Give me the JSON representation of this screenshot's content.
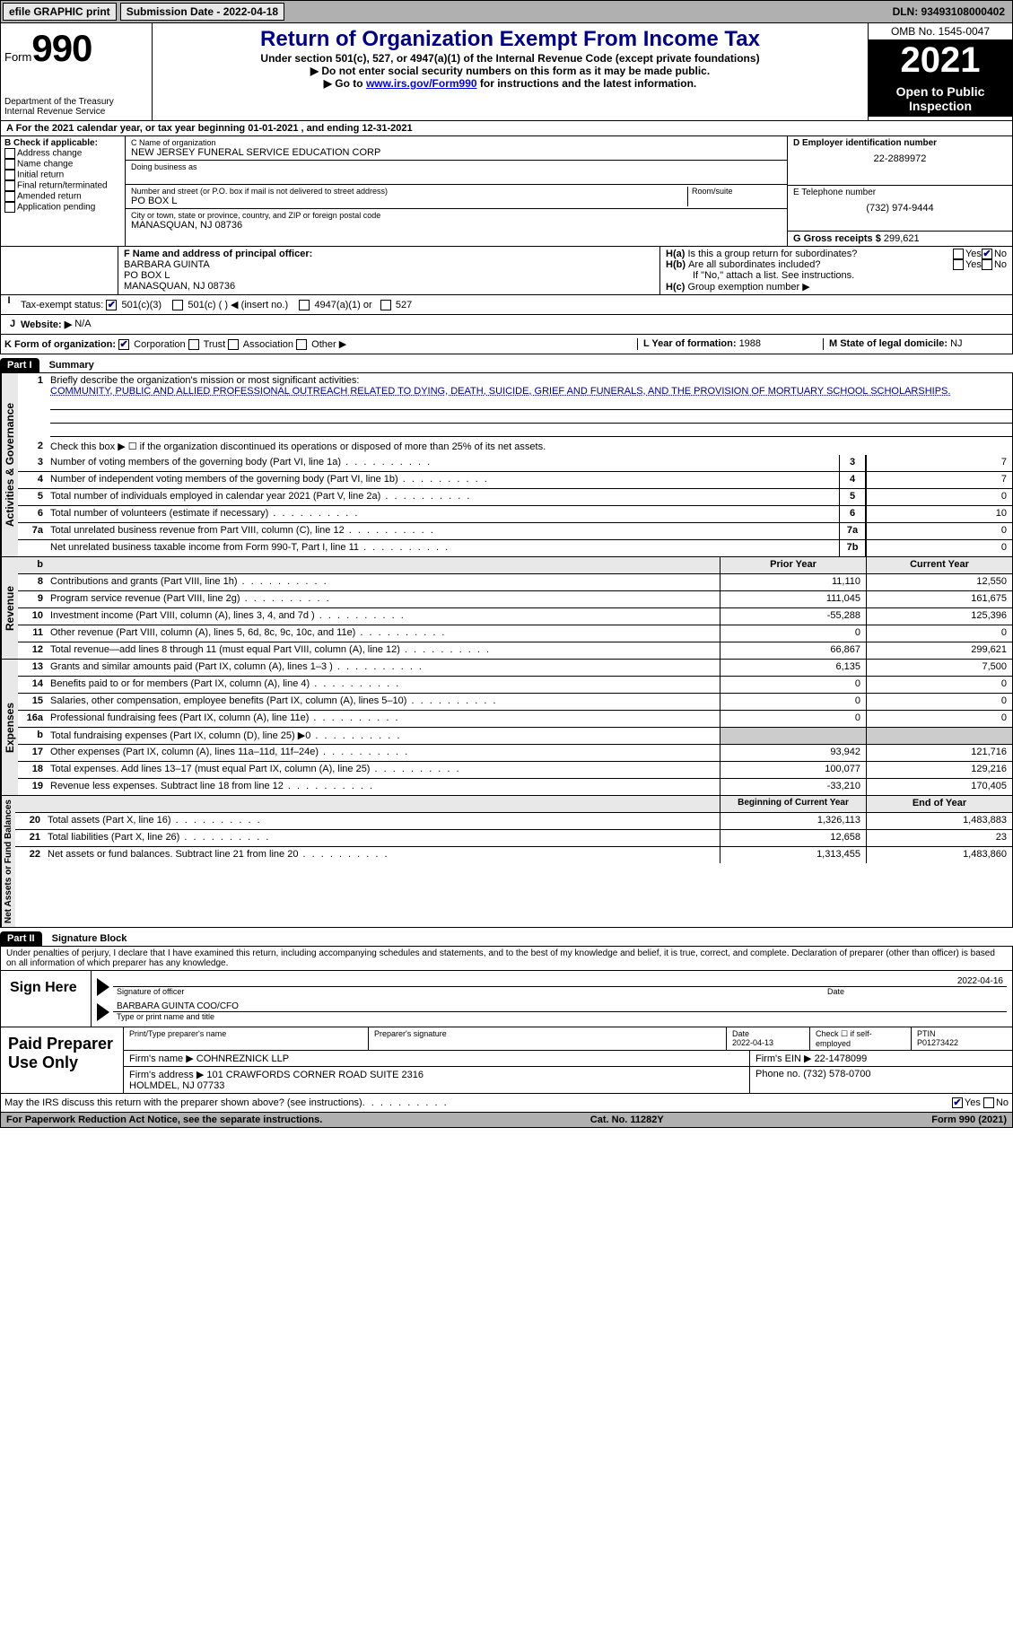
{
  "topbar": {
    "efile": "efile GRAPHIC print",
    "submission_label": "Submission Date - 2022-04-18",
    "dln_label": "DLN: 93493108000402"
  },
  "header": {
    "form_word": "Form",
    "form_num": "990",
    "dept1": "Department of the Treasury",
    "dept2": "Internal Revenue Service",
    "title": "Return of Organization Exempt From Income Tax",
    "sub1": "Under section 501(c), 527, or 4947(a)(1) of the Internal Revenue Code (except private foundations)",
    "sub2": "▶ Do not enter social security numbers on this form as it may be made public.",
    "sub3_pre": "▶ Go to ",
    "sub3_link": "www.irs.gov/Form990",
    "sub3_post": " for instructions and the latest information.",
    "omb": "OMB No. 1545-0047",
    "year": "2021",
    "open": "Open to Public Inspection"
  },
  "rowA": {
    "text_pre": "A For the 2021 calendar year, or tax year beginning ",
    "begin": "01-01-2021",
    "mid": " , and ending ",
    "end": "12-31-2021"
  },
  "colB": {
    "header": "B Check if applicable:",
    "opts": [
      "Address change",
      "Name change",
      "Initial return",
      "Final return/terminated",
      "Amended return",
      "Application pending"
    ]
  },
  "colC": {
    "name_label": "C Name of organization",
    "name": "NEW JERSEY FUNERAL SERVICE EDUCATION CORP",
    "dba_label": "Doing business as",
    "addr_label": "Number and street (or P.O. box if mail is not delivered to street address)",
    "room_label": "Room/suite",
    "addr": "PO BOX L",
    "city_label": "City or town, state or province, country, and ZIP or foreign postal code",
    "city": "MANASQUAN, NJ  08736"
  },
  "colD": {
    "ein_label": "D Employer identification number",
    "ein": "22-2889972",
    "phone_label": "E Telephone number",
    "phone": "(732) 974-9444",
    "gross_label": "G Gross receipts $ ",
    "gross": "299,621"
  },
  "rowF": {
    "label": "F Name and address of principal officer:",
    "name": "BARBARA GUINTA",
    "addr": "PO BOX L",
    "city": "MANASQUAN, NJ  08736"
  },
  "rowH": {
    "ha": "Is this a group return for subordinates?",
    "hb": "Are all subordinates included?",
    "hb_note": "If \"No,\" attach a list. See instructions.",
    "hc": "Group exemption number ▶"
  },
  "rowI": {
    "label": "Tax-exempt status:",
    "opt1": "501(c)(3)",
    "opt2": "501(c) (  ) ◀ (insert no.)",
    "opt3": "4947(a)(1) or",
    "opt4": "527"
  },
  "rowJ": {
    "label": "Website: ▶",
    "val": "N/A"
  },
  "rowK": {
    "label": "K Form of organization:",
    "opts": [
      "Corporation",
      "Trust",
      "Association",
      "Other ▶"
    ],
    "L_label": "L Year of formation: ",
    "L_val": "1988",
    "M_label": "M State of legal domicile: ",
    "M_val": "NJ"
  },
  "part1": {
    "header": "Part I",
    "title": "Summary",
    "mission_label": "Briefly describe the organization's mission or most significant activities:",
    "mission": "COMMUNITY, PUBLIC AND ALLIED PROFESSIONAL OUTREACH RELATED TO DYING, DEATH, SUICIDE, GRIEF AND FUNERALS, AND THE PROVISION OF MORTUARY SCHOOL SCHOLARSHIPS.",
    "line2": "Check this box ▶ ☐ if the organization discontinued its operations or disposed of more than 25% of its net assets.",
    "gov_rows": [
      {
        "n": "3",
        "t": "Number of voting members of the governing body (Part VI, line 1a)",
        "box": "3",
        "v": "7"
      },
      {
        "n": "4",
        "t": "Number of independent voting members of the governing body (Part VI, line 1b)",
        "box": "4",
        "v": "7"
      },
      {
        "n": "5",
        "t": "Total number of individuals employed in calendar year 2021 (Part V, line 2a)",
        "box": "5",
        "v": "0"
      },
      {
        "n": "6",
        "t": "Total number of volunteers (estimate if necessary)",
        "box": "6",
        "v": "10"
      },
      {
        "n": "7a",
        "t": "Total unrelated business revenue from Part VIII, column (C), line 12",
        "box": "7a",
        "v": "0"
      },
      {
        "n": "",
        "t": "Net unrelated business taxable income from Form 990-T, Part I, line 11",
        "box": "7b",
        "v": "0"
      }
    ],
    "col_prior": "Prior Year",
    "col_current": "Current Year",
    "rev_rows": [
      {
        "n": "8",
        "t": "Contributions and grants (Part VIII, line 1h)",
        "p": "11,110",
        "c": "12,550"
      },
      {
        "n": "9",
        "t": "Program service revenue (Part VIII, line 2g)",
        "p": "111,045",
        "c": "161,675"
      },
      {
        "n": "10",
        "t": "Investment income (Part VIII, column (A), lines 3, 4, and 7d )",
        "p": "-55,288",
        "c": "125,396"
      },
      {
        "n": "11",
        "t": "Other revenue (Part VIII, column (A), lines 5, 6d, 8c, 9c, 10c, and 11e)",
        "p": "0",
        "c": "0"
      },
      {
        "n": "12",
        "t": "Total revenue—add lines 8 through 11 (must equal Part VIII, column (A), line 12)",
        "p": "66,867",
        "c": "299,621"
      }
    ],
    "exp_rows": [
      {
        "n": "13",
        "t": "Grants and similar amounts paid (Part IX, column (A), lines 1–3 )",
        "p": "6,135",
        "c": "7,500"
      },
      {
        "n": "14",
        "t": "Benefits paid to or for members (Part IX, column (A), line 4)",
        "p": "0",
        "c": "0"
      },
      {
        "n": "15",
        "t": "Salaries, other compensation, employee benefits (Part IX, column (A), lines 5–10)",
        "p": "0",
        "c": "0"
      },
      {
        "n": "16a",
        "t": "Professional fundraising fees (Part IX, column (A), line 11e)",
        "p": "0",
        "c": "0"
      },
      {
        "n": "b",
        "t": "Total fundraising expenses (Part IX, column (D), line 25) ▶0",
        "p": "",
        "c": "",
        "grey": true
      },
      {
        "n": "17",
        "t": "Other expenses (Part IX, column (A), lines 11a–11d, 11f–24e)",
        "p": "93,942",
        "c": "121,716"
      },
      {
        "n": "18",
        "t": "Total expenses. Add lines 13–17 (must equal Part IX, column (A), line 25)",
        "p": "100,077",
        "c": "129,216"
      },
      {
        "n": "19",
        "t": "Revenue less expenses. Subtract line 18 from line 12",
        "p": "-33,210",
        "c": "170,405"
      }
    ],
    "col_boy": "Beginning of Current Year",
    "col_eoy": "End of Year",
    "net_rows": [
      {
        "n": "20",
        "t": "Total assets (Part X, line 16)",
        "p": "1,326,113",
        "c": "1,483,883"
      },
      {
        "n": "21",
        "t": "Total liabilities (Part X, line 26)",
        "p": "12,658",
        "c": "23"
      },
      {
        "n": "22",
        "t": "Net assets or fund balances. Subtract line 21 from line 20",
        "p": "1,313,455",
        "c": "1,483,860"
      }
    ],
    "vert_gov": "Activities & Governance",
    "vert_rev": "Revenue",
    "vert_exp": "Expenses",
    "vert_net": "Net Assets or Fund Balances"
  },
  "part2": {
    "header": "Part II",
    "title": "Signature Block",
    "jurat": "Under penalties of perjury, I declare that I have examined this return, including accompanying schedules and statements, and to the best of my knowledge and belief, it is true, correct, and complete. Declaration of preparer (other than officer) is based on all information of which preparer has any knowledge.",
    "sign_here": "Sign Here",
    "sig_date": "2022-04-16",
    "sig_label1": "Signature of officer",
    "sig_label2": "Date",
    "officer": "BARBARA GUINTA COO/CFO",
    "sig_label3": "Type or print name and title"
  },
  "preparer": {
    "header": "Paid Preparer Use Only",
    "col1": "Print/Type preparer's name",
    "col2": "Preparer's signature",
    "col3_label": "Date",
    "col3": "2022-04-13",
    "col4_label": "Check ☐ if self-employed",
    "col5_label": "PTIN",
    "col5": "P01273422",
    "firm_label": "Firm's name    ▶",
    "firm": "COHNREZNICK LLP",
    "ein_label": "Firm's EIN ▶",
    "ein": "22-1478099",
    "addr_label": "Firm's address ▶",
    "addr": "101 CRAWFORDS CORNER ROAD SUITE 2316\nHOLMDEL, NJ  07733",
    "phone_label": "Phone no. ",
    "phone": "(732) 578-0700"
  },
  "bottom": {
    "discuss": "May the IRS discuss this return with the preparer shown above? (see instructions)",
    "yes": "Yes",
    "no": "No",
    "paperwork": "For Paperwork Reduction Act Notice, see the separate instructions.",
    "cat": "Cat. No. 11282Y",
    "form": "Form 990 (2021)"
  },
  "colors": {
    "link": "#0000ee",
    "dark_blue": "#00008b",
    "grey_bg": "#b0b0b0",
    "light_grey": "#e8e8e8"
  }
}
